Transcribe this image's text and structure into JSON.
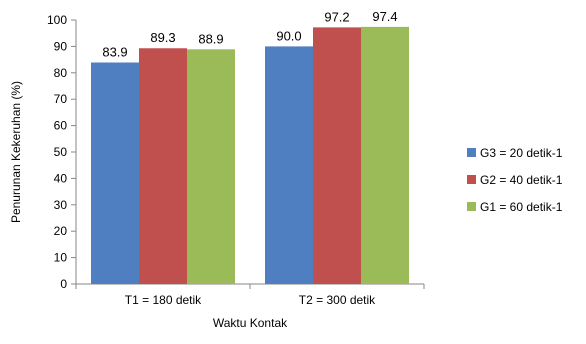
{
  "chart_data": {
    "type": "bar",
    "categories": [
      "T1 = 180 detik",
      "T2 = 300 detik"
    ],
    "series": [
      {
        "name": "G3 = 20 detik-1",
        "values": [
          83.9,
          90.0
        ],
        "labels": [
          "83.9",
          "90.0"
        ],
        "color": "#4f7fc1"
      },
      {
        "name": "G2 = 40 detik-1",
        "values": [
          89.3,
          97.2
        ],
        "labels": [
          "89.3",
          "97.2"
        ],
        "color": "#c0504d"
      },
      {
        "name": "G1 = 60 detik-1",
        "values": [
          88.9,
          97.4
        ],
        "labels": [
          "88.9",
          "97.4"
        ],
        "color": "#9bbb59"
      }
    ],
    "title": "",
    "xlabel": "Waktu Kontak",
    "ylabel": "Penurunan Kekeruhan (%)",
    "ylim": [
      0,
      100
    ],
    "yticks": [
      "0",
      "10",
      "20",
      "30",
      "40",
      "50",
      "60",
      "70",
      "80",
      "90",
      "100"
    ],
    "grid": false,
    "legend_position": "right"
  }
}
